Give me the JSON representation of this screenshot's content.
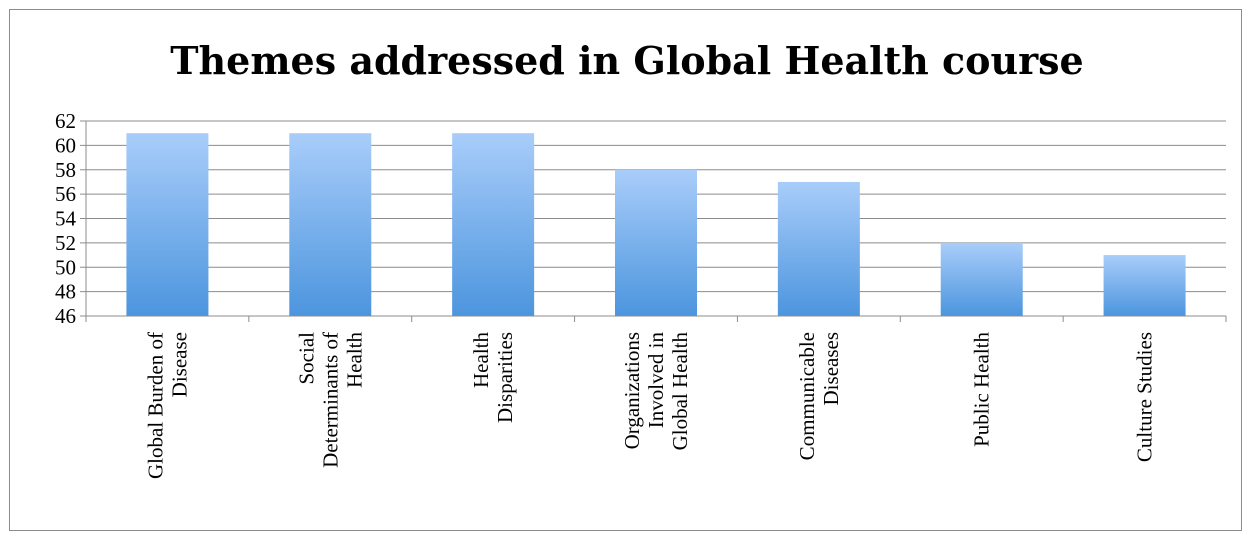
{
  "chart_data": {
    "type": "bar",
    "title": "Themes addressed in Global Health course",
    "categories": [
      [
        "Global Burden of",
        "Disease"
      ],
      [
        "Social",
        "Determinants of",
        "Health"
      ],
      [
        "Health",
        "Disparities"
      ],
      [
        "Organizations",
        "Involved in",
        "Global Health"
      ],
      [
        "Communicable",
        "Diseases"
      ],
      [
        "Public Health"
      ],
      [
        "Culture Studies"
      ]
    ],
    "values": [
      61,
      61,
      61,
      58,
      57,
      52,
      51
    ],
    "ylim": [
      46,
      62
    ],
    "yticks": [
      "46",
      "48",
      "50",
      "52",
      "54",
      "56",
      "58",
      "60",
      "62"
    ],
    "xlabel": "",
    "ylabel": "",
    "grid": true,
    "legend": "none",
    "colors": {
      "bar_top": "#a9cdfa",
      "bar_bottom": "#4c95de",
      "grid": "#8c8c8c",
      "axis": "#8c8c8c"
    }
  }
}
